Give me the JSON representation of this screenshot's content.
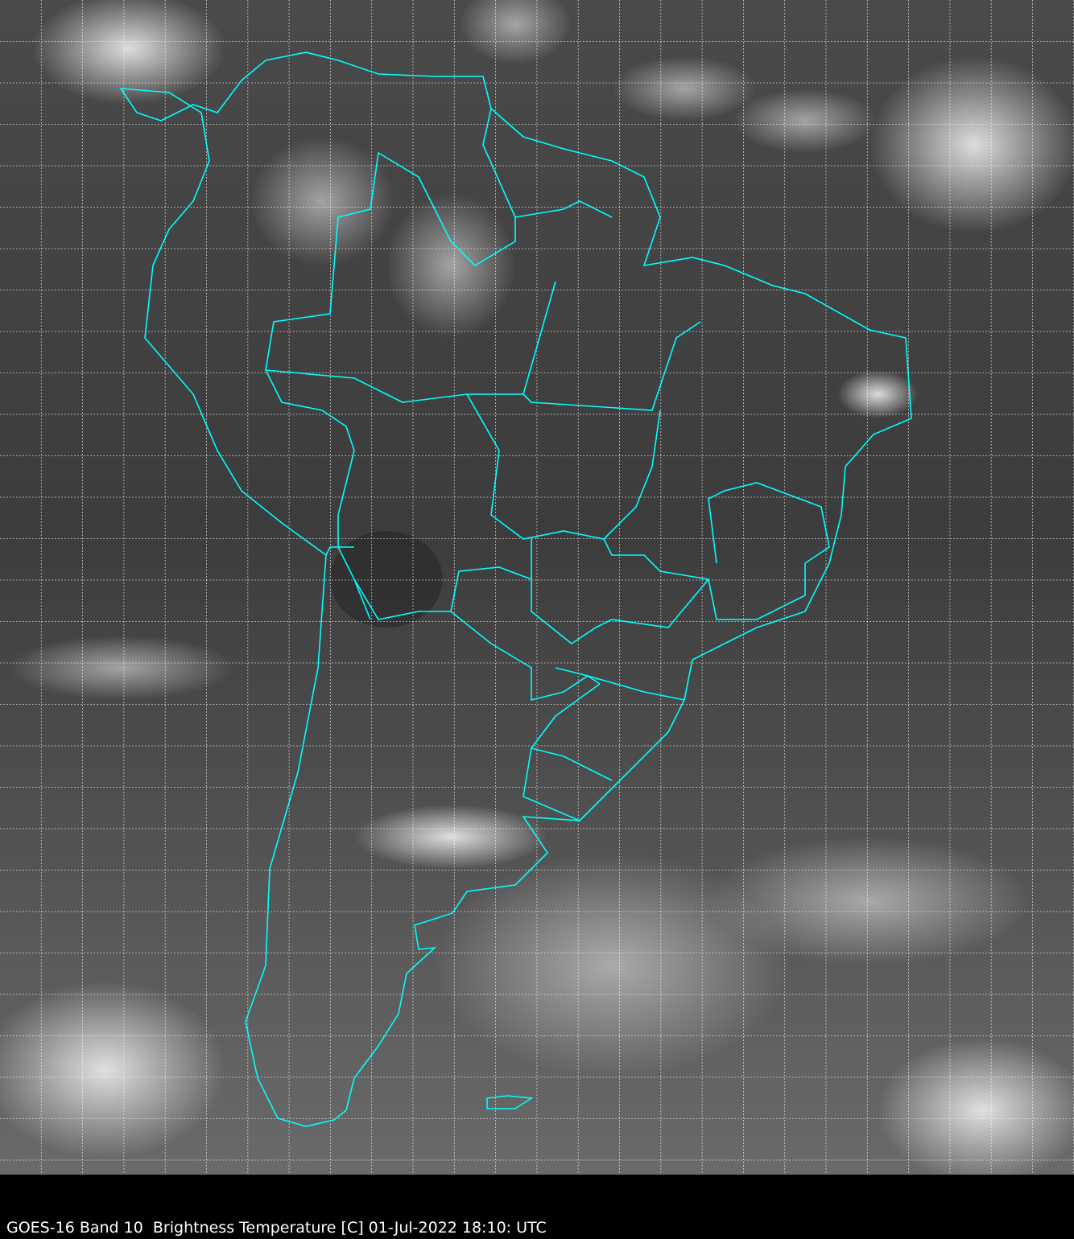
{
  "caption": "GOES-16 Band 10  Brightness Temperature [C] 01-Jul-2022 18:10: UTC",
  "map": {
    "satellite": "GOES-16",
    "band": "10",
    "product": "Brightness Temperature",
    "units": "C",
    "date": "01-Jul-2022",
    "time": "18:10 UTC",
    "colormap": "grayscale",
    "border_color": "#00ffff",
    "grid_color": "#ffffff",
    "grid_style": "dotted"
  }
}
